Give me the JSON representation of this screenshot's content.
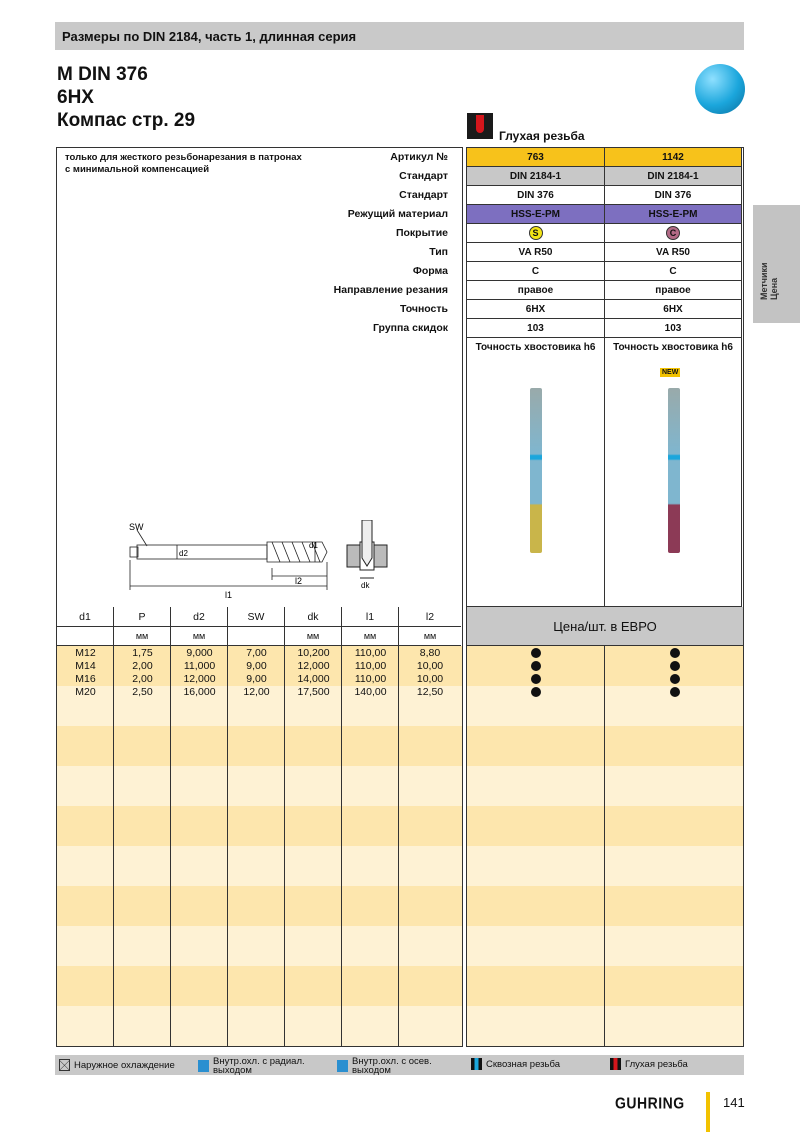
{
  "header": {
    "title": "Размеры по DIN 2184, часть 1, длинная серия"
  },
  "titles": [
    "M DIN 376",
    "6HX",
    "Компас стр. 29"
  ],
  "thread_type": "Глухая резьба",
  "note": "только для жесткого резьбонарезания в патронах с минимальной компенсацией",
  "spec_labels": [
    "Артикул №",
    "Стандарт",
    "Стандарт",
    "Режущий материал",
    "Покрытие",
    "Тип",
    "Форма",
    "Направление резания",
    "Точность",
    "Группа скидок"
  ],
  "products": [
    {
      "article": "763",
      "standard1": "DIN 2184-1",
      "standard2": "DIN 376",
      "material": "HSS-E-PM",
      "coating": "S",
      "coating_color": "#f3e416",
      "type": "VA R50",
      "form": "C",
      "direction": "правое",
      "tolerance": "6HX",
      "discount": "103",
      "shank": "Точность хвостовика h6",
      "badge": "",
      "tap_color": "#c9b54a"
    },
    {
      "article": "1142",
      "standard1": "DIN 2184-1",
      "standard2": "DIN 376",
      "material": "HSS-E-PM",
      "coating": "C",
      "coating_color": "#b26a86",
      "type": "VA R50",
      "form": "C",
      "direction": "правое",
      "tolerance": "6HX",
      "discount": "103",
      "shank": "Точность хвостовика h6",
      "badge": "NEW",
      "tap_color": "#8c3a56"
    }
  ],
  "drawing": {
    "sw": "SW",
    "d2": "d2",
    "d1": "d1",
    "l1": "l1",
    "l2": "l2",
    "dk": "dk"
  },
  "table": {
    "headers": [
      "d1",
      "P",
      "d2",
      "SW",
      "dk",
      "l1",
      "l2"
    ],
    "units": [
      "",
      "мм",
      "мм",
      "",
      "мм",
      "мм",
      "мм"
    ],
    "rows": [
      [
        "M12",
        "1,75",
        "9,000",
        "7,00",
        "10,200",
        "110,00",
        "8,80"
      ],
      [
        "M14",
        "2,00",
        "11,000",
        "9,00",
        "12,000",
        "110,00",
        "10,00"
      ],
      [
        "M16",
        "2,00",
        "12,000",
        "9,00",
        "14,000",
        "110,00",
        "10,00"
      ],
      [
        "M20",
        "2,50",
        "16,000",
        "12,00",
        "17,500",
        "140,00",
        "12,50"
      ]
    ],
    "availability": [
      [
        true,
        true
      ],
      [
        true,
        true
      ],
      [
        true,
        true
      ],
      [
        true,
        true
      ]
    ]
  },
  "price_header": "Цена/шт. в ЕВРО",
  "side_tab": [
    "Метчики",
    "Цена"
  ],
  "legend": [
    "Наружное охлаждение",
    "Внутр.охл. с радиал. выходом",
    "Внутр.охл. с осев. выходом",
    "Сквозная резьба",
    "Глухая резьба"
  ],
  "footer": {
    "brand": "GUHRING",
    "page": "141"
  },
  "colors": {
    "article_row": "#f7c21b",
    "standard_row": "#c8c8c8",
    "material_row": "#7d6fc0",
    "band_dark": "#fde6ad",
    "band_light": "#fef2d4"
  }
}
